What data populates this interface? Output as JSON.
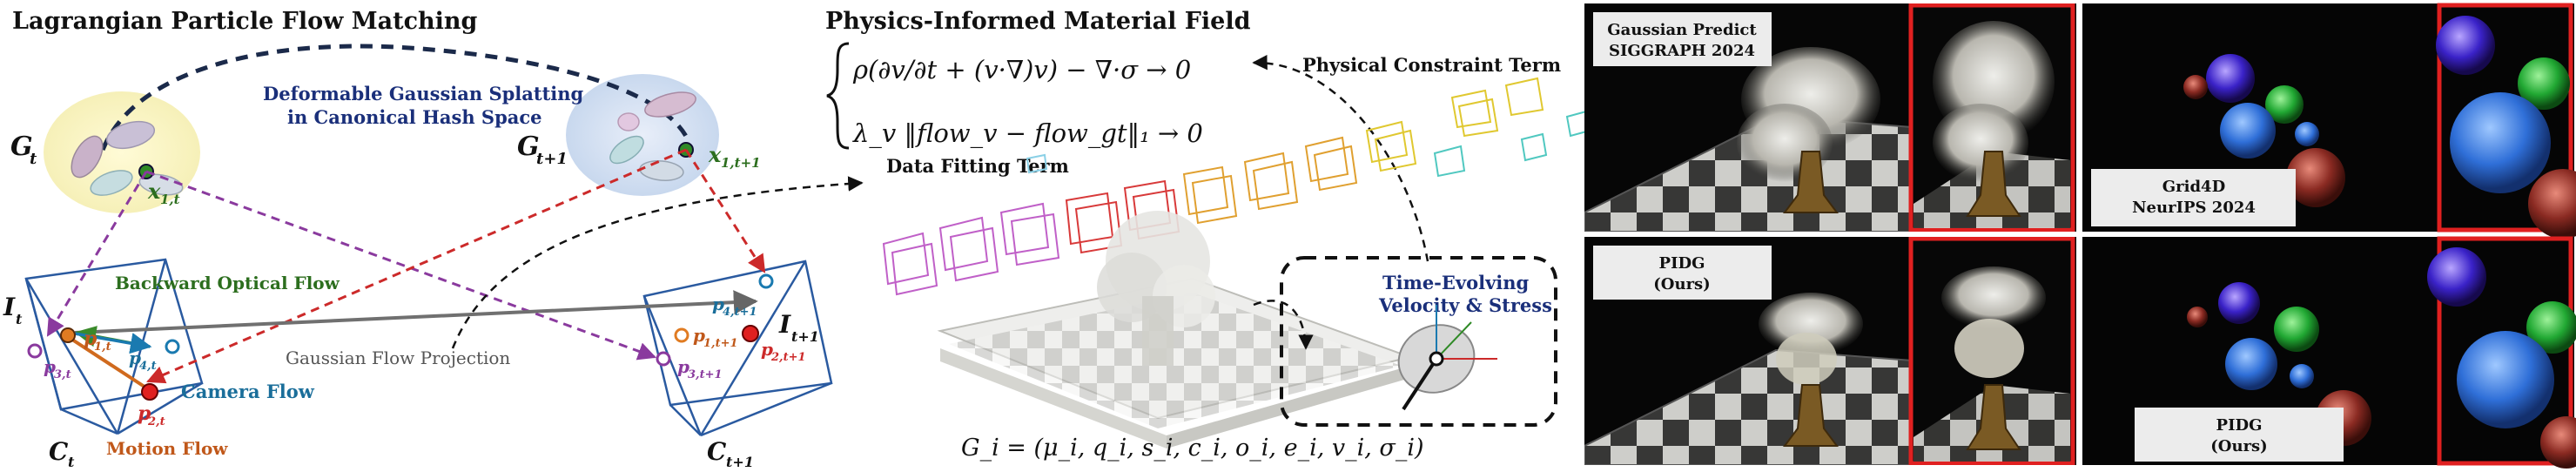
{
  "left": {
    "title": "Lagrangian Particle Flow Matching",
    "hash_space": [
      "Deformable Gaussian Splatting",
      "in Canonical Hash Space"
    ],
    "g_t": "G",
    "g_t_sub": "t",
    "g_t1": "G",
    "g_t1_sub": "t+1",
    "x1t": "x",
    "x1t_sub": "1,t",
    "x1t1": "x",
    "x1t1_sub": "1,t+1",
    "i_t": "I",
    "i_t_sub": "t",
    "i_t1": "I",
    "i_t1_sub": "t+1",
    "c_t": "C",
    "c_t_sub": "t",
    "c_t1": "C",
    "c_t1_sub": "t+1",
    "backward_flow": "Backward Optical Flow",
    "gaussian_proj": "Gaussian Flow Projection",
    "camera_flow": "Camera Flow",
    "motion_flow": "Motion Flow",
    "points": {
      "p1t": [
        "p",
        "1,t"
      ],
      "p2t": [
        "p",
        "2,t"
      ],
      "p3t": [
        "p",
        "3,t"
      ],
      "p4t": [
        "p",
        "4,t"
      ],
      "p1t1": [
        "p",
        "1,t+1"
      ],
      "p2t1": [
        "p",
        "2,t+1"
      ],
      "p3t1": [
        "p",
        "3,t+1"
      ],
      "p4t1": [
        "p",
        "4,t+1"
      ]
    }
  },
  "middle": {
    "title": "Physics-Informed Material Field",
    "eq1": "ρ(∂v/∂t + (v·∇)v) − ∇·σ → 0",
    "eq2": "λ_v ‖flow_v − flow_gt‖₁ → 0",
    "physical_constraint": "Physical Constraint Term",
    "data_fitting": "Data Fitting Term",
    "time_evolving": [
      "Time-Evolving",
      "Velocity & Stress"
    ],
    "gi_eq": "G_i = (μ_i, q_i, s_i, c_i, o_i, e_i, v_i, σ_i)"
  },
  "right": {
    "panels": [
      {
        "label": [
          "Gaussian Predict",
          "SIGGRAPH 2024"
        ]
      },
      {
        "label": [
          "Grid4D",
          "NeurIPS 2024"
        ]
      },
      {
        "label": [
          "PIDG",
          "(Ours)"
        ]
      },
      {
        "label": [
          "PIDG",
          "(Ours)"
        ]
      }
    ]
  },
  "colors": {
    "purple_dashed": "#8a3a9e",
    "red_dashed": "#cc2a2a",
    "green": "#2c6e1e",
    "blue_text": "#1a6e9a",
    "orange": "#d06a1e",
    "highlight": "#e02020"
  }
}
